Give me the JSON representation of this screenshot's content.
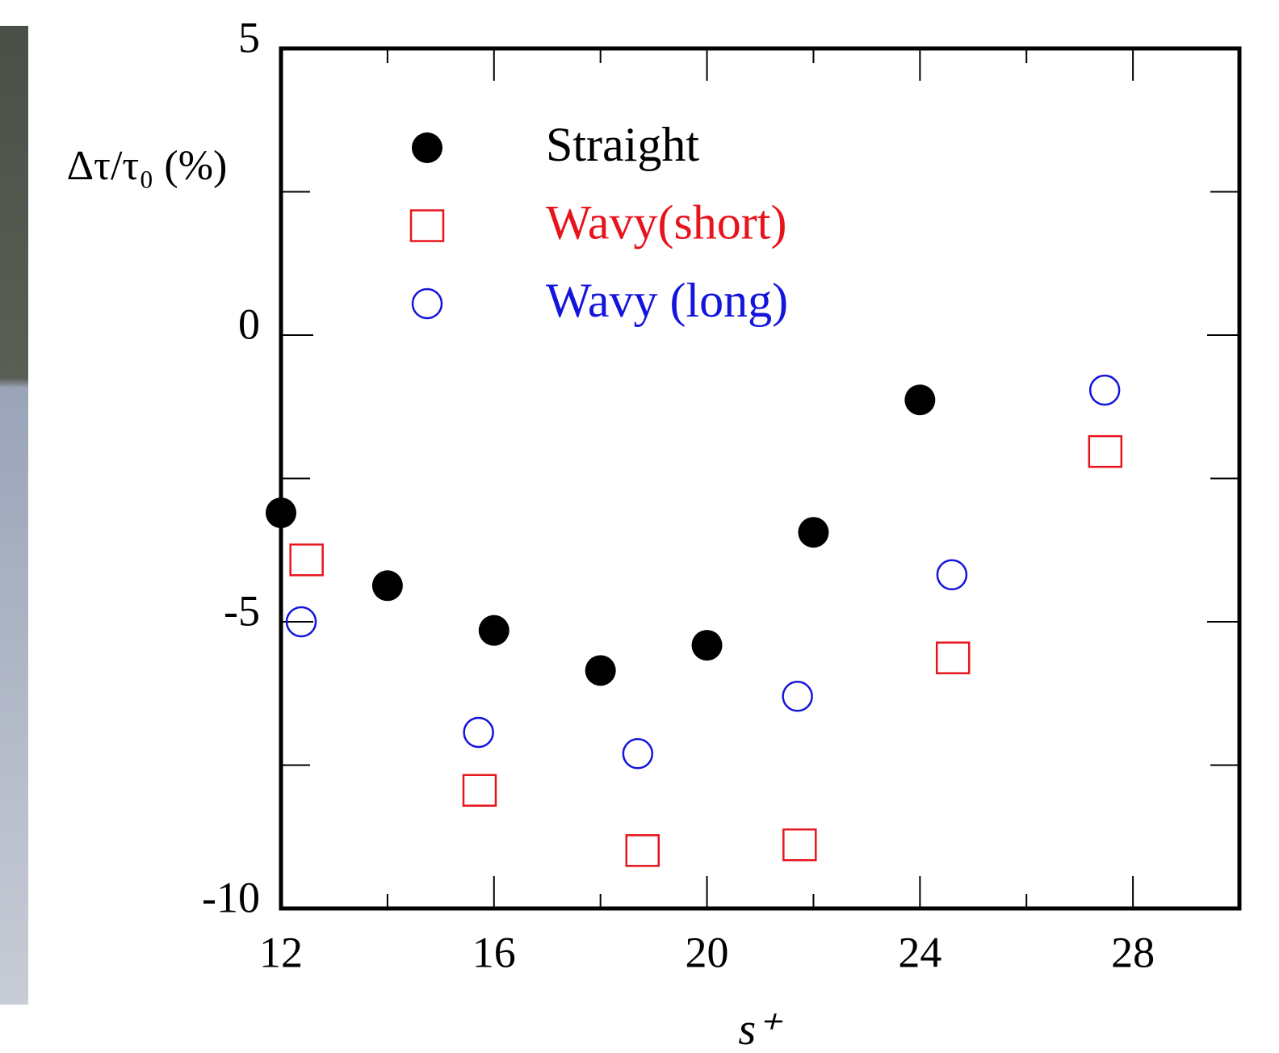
{
  "chart_data": {
    "type": "scatter",
    "y_label": "Δτ/τ₀ (%)",
    "x_label": "s⁺",
    "xlim": [
      12,
      30
    ],
    "xticks": [
      12,
      16,
      20,
      24,
      28
    ],
    "xminor": [
      14,
      18,
      22,
      26
    ],
    "ylim": [
      -10,
      5
    ],
    "yticks": [
      -10,
      -5,
      0,
      5
    ],
    "yminor": [
      -7.5,
      -2.5,
      2.5
    ],
    "series": [
      {
        "name": "Straight",
        "color": "#000000",
        "marker": "filled-circle",
        "x": [
          12,
          14,
          16,
          18,
          20,
          22,
          24
        ],
        "values": [
          -3.1,
          -4.37,
          -5.15,
          -5.85,
          -5.41,
          -3.44,
          -1.13
        ]
      },
      {
        "name": "Wavy(short)",
        "color": "#e8141c",
        "marker": "open-square",
        "x": [
          12.48,
          15.73,
          18.79,
          21.74,
          24.62,
          27.48
        ],
        "values": [
          -3.92,
          -7.94,
          -8.99,
          -8.89,
          -5.63,
          -2.03
        ]
      },
      {
        "name": "Wavy (long)",
        "color": "#1414dc",
        "marker": "open-circle",
        "x": [
          12.38,
          15.71,
          18.7,
          21.7,
          24.6,
          27.47
        ],
        "values": [
          -5.0,
          -6.93,
          -7.3,
          -6.3,
          -4.18,
          -0.96
        ]
      }
    ]
  }
}
